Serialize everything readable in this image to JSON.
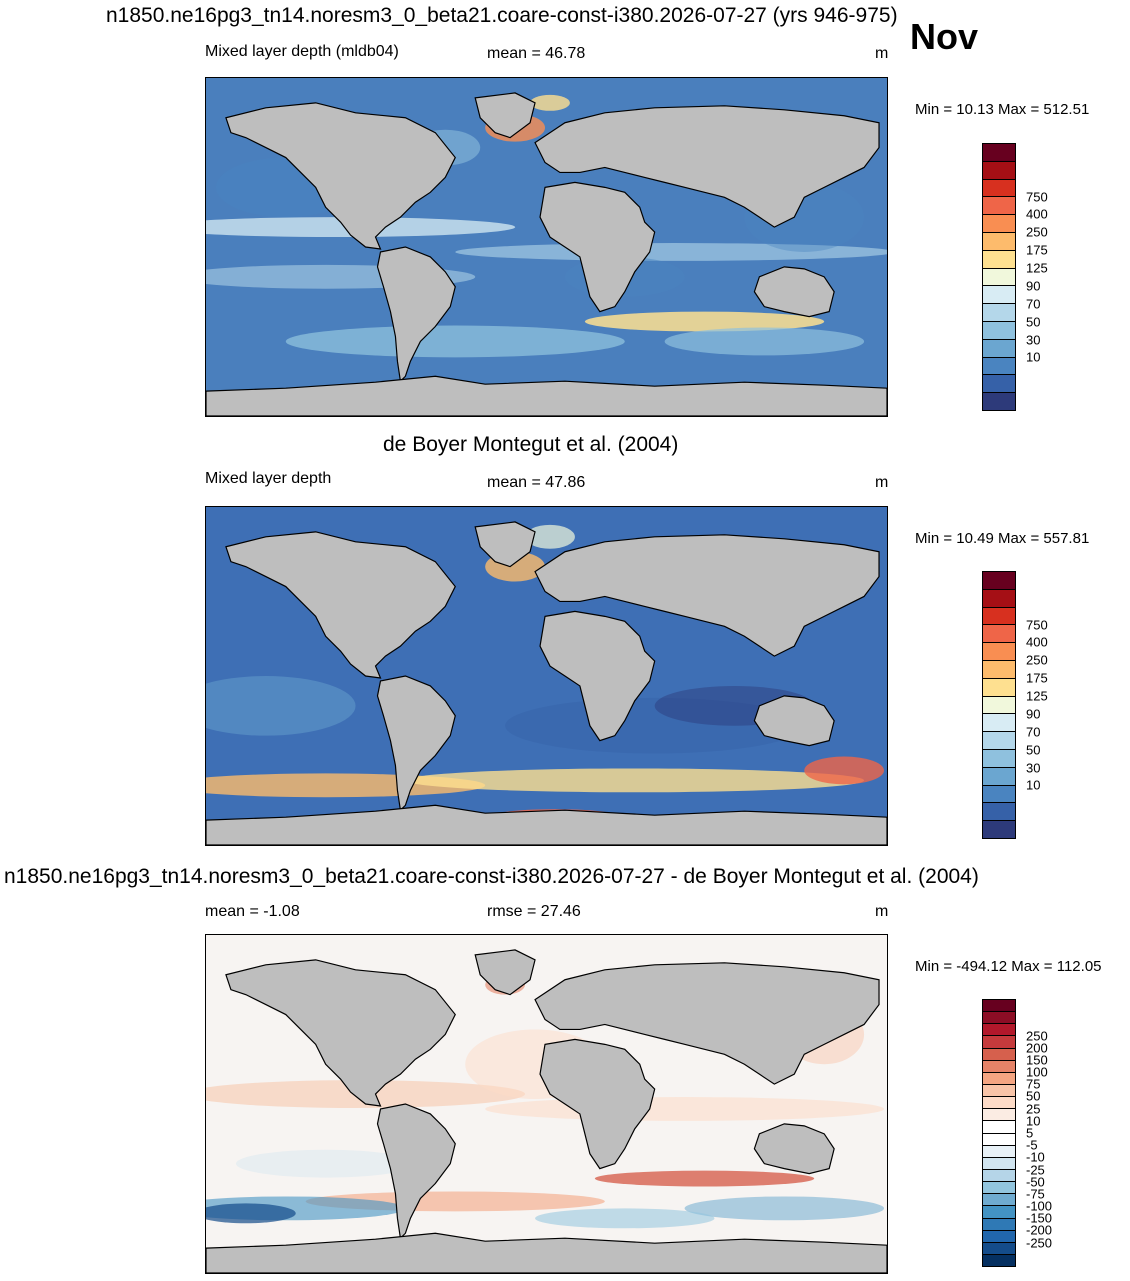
{
  "month": "Nov",
  "land_color": "#bebebe",
  "panels": [
    {
      "id": "model",
      "title": "n1850.ne16pg3_tn14.noresm3_0_beta21.coare-const-i380.2026-07-27 (yrs 946-975)",
      "left_label": "Mixed layer depth (mldb04)",
      "center_label": "mean =  46.78",
      "units": "m",
      "minmax": "Min =  10.13 Max = 512.51",
      "ocean_base": "#4a7fbd",
      "colorbar": {
        "colors": [
          "#67001f",
          "#a50f15",
          "#d7301f",
          "#ef6548",
          "#f98e52",
          "#fdbb6c",
          "#fee090",
          "#f1f8dc",
          "#d8ecf4",
          "#b4d7ea",
          "#8fc1de",
          "#6ba6d0",
          "#4a84c0",
          "#3661a8",
          "#2d3a7a"
        ],
        "labels": [
          "750",
          "400",
          "250",
          "175",
          "125",
          "90",
          "70",
          "50",
          "30",
          "10"
        ]
      }
    },
    {
      "id": "obs",
      "title": "de Boyer Montegut et al. (2004)",
      "left_label": "Mixed layer depth",
      "center_label": "mean =  47.86",
      "units": "m",
      "minmax": "Min =  10.49 Max = 557.81",
      "ocean_base": "#3e6fb5",
      "colorbar": {
        "colors": [
          "#67001f",
          "#a50f15",
          "#d7301f",
          "#ef6548",
          "#f98e52",
          "#fdbb6c",
          "#fee090",
          "#f1f8dc",
          "#d8ecf4",
          "#b4d7ea",
          "#8fc1de",
          "#6ba6d0",
          "#4a84c0",
          "#3661a8",
          "#2d3a7a"
        ],
        "labels": [
          "750",
          "400",
          "250",
          "175",
          "125",
          "90",
          "70",
          "50",
          "30",
          "10"
        ]
      }
    },
    {
      "id": "diff",
      "title": "n1850.ne16pg3_tn14.noresm3_0_beta21.coare-const-i380.2026-07-27 - de Boyer Montegut et al. (2004)",
      "left_label": "mean =  -1.08",
      "center_label": "rmse =  27.46",
      "units": "m",
      "minmax": "Min = -494.12 Max = 112.05",
      "ocean_base": "#f7f4f2",
      "colorbar": {
        "colors": [
          "#67001f",
          "#8c0d25",
          "#b2182b",
          "#c53a3c",
          "#d6604d",
          "#e58368",
          "#f4a582",
          "#f8c4a8",
          "#fddbc7",
          "#fbece3",
          "#ffffff",
          "#ffffff",
          "#e8f1f7",
          "#d1e5f0",
          "#b5d5e8",
          "#92c5de",
          "#6fabd0",
          "#4393c3",
          "#2f79b5",
          "#2166ac",
          "#144c8a",
          "#053061"
        ],
        "labels": [
          "250",
          "200",
          "150",
          "100",
          "75",
          "50",
          "25",
          "10",
          "5",
          "-5",
          "-10",
          "-25",
          "-50",
          "-75",
          "-100",
          "-150",
          "-200",
          "-250"
        ]
      }
    }
  ]
}
